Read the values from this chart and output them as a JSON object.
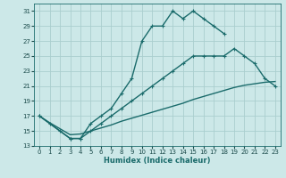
{
  "xlabel": "Humidex (Indice chaleur)",
  "bg_color": "#cce8e8",
  "grid_color": "#aacece",
  "line_color": "#1a6b6b",
  "xlim": [
    -0.5,
    23.5
  ],
  "ylim": [
    13,
    32
  ],
  "yticks": [
    13,
    15,
    17,
    19,
    21,
    23,
    25,
    27,
    29,
    31
  ],
  "xticks": [
    0,
    1,
    2,
    3,
    4,
    5,
    6,
    7,
    8,
    9,
    10,
    11,
    12,
    13,
    14,
    15,
    16,
    17,
    18,
    19,
    20,
    21,
    22,
    23
  ],
  "line1_x": [
    0,
    1,
    2,
    3,
    4,
    5,
    6,
    7,
    8,
    9,
    10,
    11,
    12,
    13,
    14,
    15,
    16,
    17,
    18
  ],
  "line1_y": [
    17,
    16,
    15,
    14,
    14,
    16,
    17,
    18,
    20,
    22,
    27,
    29,
    29,
    31,
    30,
    31,
    30,
    29,
    28
  ],
  "line2_x": [
    0,
    3,
    4,
    5,
    6,
    7,
    8,
    9,
    10,
    11,
    12,
    13,
    14,
    15,
    16,
    17,
    18,
    19,
    20,
    21,
    22,
    23
  ],
  "line2_y": [
    17,
    14,
    14,
    15,
    16,
    17,
    18,
    19,
    20,
    21,
    22,
    23,
    24,
    25,
    25,
    25,
    25,
    26,
    25,
    24,
    22,
    21
  ],
  "line3_x": [
    0,
    1,
    2,
    3,
    4,
    5,
    6,
    7,
    8,
    9,
    10,
    11,
    12,
    13,
    14,
    15,
    16,
    17,
    18,
    19,
    20,
    21,
    22,
    23
  ],
  "line3_y": [
    17,
    16.1,
    15.3,
    14.5,
    14.6,
    15.0,
    15.4,
    15.8,
    16.3,
    16.7,
    17.1,
    17.5,
    17.9,
    18.3,
    18.7,
    19.2,
    19.6,
    20.0,
    20.4,
    20.8,
    21.1,
    21.3,
    21.5,
    21.6
  ],
  "marker_size": 2.5,
  "line_width": 1.0,
  "tick_fontsize": 5.0,
  "xlabel_fontsize": 6.0
}
